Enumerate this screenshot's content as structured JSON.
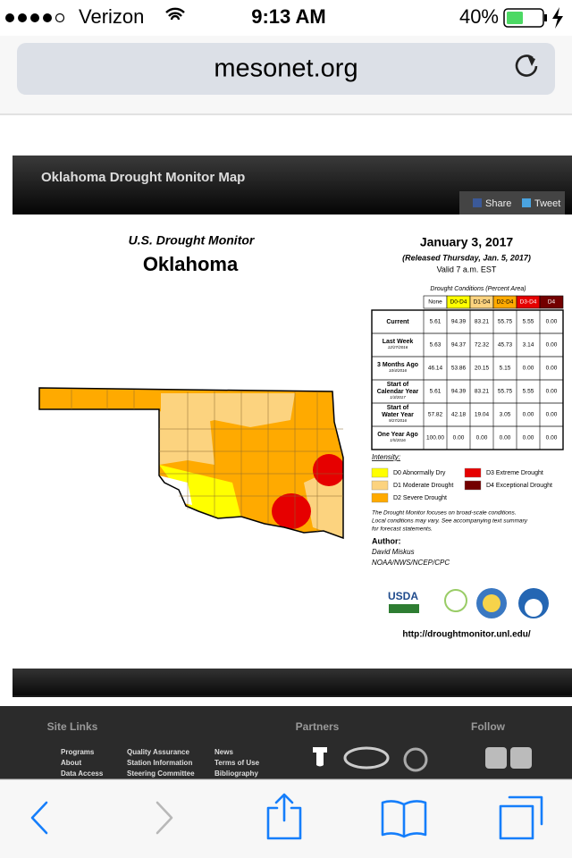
{
  "status_bar": {
    "carrier": "Verizon",
    "time": "9:13 AM",
    "battery": "40%"
  },
  "address_bar": {
    "url": "mesonet.org"
  },
  "panel": {
    "title": "Oklahoma Drought Monitor Map",
    "share": "Share",
    "tweet": "Tweet"
  },
  "map": {
    "heading": "U.S. Drought Monitor",
    "state": "Oklahoma",
    "date": "January 3, 2017",
    "released": "(Released Thursday, Jan. 5, 2017)",
    "valid": "Valid 7 a.m. EST",
    "table": {
      "caption": "Drought Conditions (Percent Area)",
      "columns": [
        {
          "label": "None",
          "color": "#ffffff",
          "text_color": "#000000"
        },
        {
          "label": "D0-D4",
          "color": "#ffff00",
          "text_color": "#000000"
        },
        {
          "label": "D1-D4",
          "color": "#fcd37f",
          "text_color": "#000000"
        },
        {
          "label": "D2-D4",
          "color": "#ffaa00",
          "text_color": "#000000"
        },
        {
          "label": "D3-D4",
          "color": "#e60000",
          "text_color": "#ffffff"
        },
        {
          "label": "D4",
          "color": "#730000",
          "text_color": "#ffffff"
        }
      ],
      "rows": [
        {
          "label": [
            "Current"
          ],
          "cells": [
            "5.61",
            "94.39",
            "83.21",
            "55.75",
            "5.55",
            "0.00"
          ]
        },
        {
          "label": [
            "Last Week"
          ],
          "date": "12/27/2016",
          "cells": [
            "5.63",
            "94.37",
            "72.32",
            "45.73",
            "3.14",
            "0.00"
          ]
        },
        {
          "label": [
            "3 Months Ago"
          ],
          "date": "10/4/2016",
          "cells": [
            "46.14",
            "53.86",
            "20.15",
            "5.15",
            "0.00",
            "0.00"
          ]
        },
        {
          "label": [
            "Start of",
            "Calendar Year"
          ],
          "date": "1/3/2017",
          "cells": [
            "5.61",
            "94.39",
            "83.21",
            "55.75",
            "5.55",
            "0.00"
          ]
        },
        {
          "label": [
            "Start of",
            "Water Year"
          ],
          "date": "9/27/2016",
          "cells": [
            "57.82",
            "42.18",
            "19.04",
            "3.05",
            "0.00",
            "0.00"
          ]
        },
        {
          "label": [
            "One Year Ago"
          ],
          "date": "1/5/2016",
          "cells": [
            "100.00",
            "0.00",
            "0.00",
            "0.00",
            "0.00",
            "0.00"
          ]
        }
      ]
    },
    "intensity_title": "Intensity:",
    "legend": [
      {
        "label": "D0 Abnormally Dry",
        "color": "#ffff00"
      },
      {
        "label": "D1 Moderate Drought",
        "color": "#fcd37f"
      },
      {
        "label": "D2 Severe Drought",
        "color": "#ffaa00"
      },
      {
        "label": "D3 Extreme Drought",
        "color": "#e60000"
      },
      {
        "label": "D4 Exceptional Drought",
        "color": "#730000"
      }
    ],
    "note": [
      "The Drought Monitor focuses on broad-scale conditions.",
      "Local conditions may vary. See accompanying text summary",
      "for forecast statements."
    ],
    "author_title": "Author:",
    "author": [
      "David Miskus",
      "NOAA/NWS/NCEP/CPC"
    ],
    "logo_text": "USDA",
    "link": "http://droughtmonitor.unl.edu/"
  },
  "footer": {
    "site_links": "Site Links",
    "partners": "Partners",
    "follow": "Follow",
    "links": [
      [
        "Programs",
        "About",
        "Data Access"
      ],
      [
        "Quality Assurance",
        "Station Information",
        "Steering Committee"
      ],
      [
        "News",
        "Terms of Use",
        "Bibliography"
      ]
    ]
  }
}
